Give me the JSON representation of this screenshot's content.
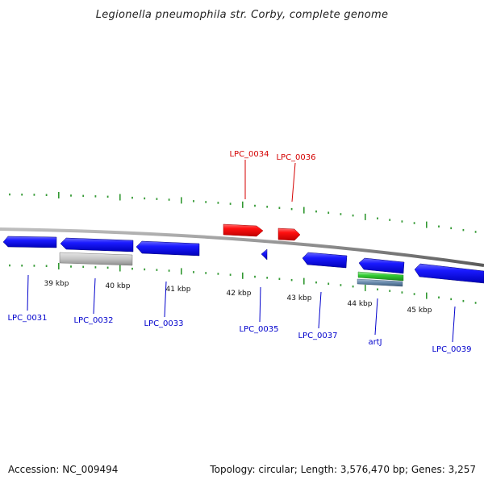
{
  "title": "Legionella pneumophila str. Corby, complete genome",
  "footer": {
    "accession": "Accession: NC_009494",
    "summary": "Topology: circular; Length: 3,576,470 bp; Genes: 3,257"
  },
  "colors": {
    "forward_gene": "#ff0000",
    "reverse_gene": "#0000ff",
    "rrna_gene": "#c8c8c8",
    "green_feature": "#33cc33",
    "steel_feature": "#6688aa",
    "backbone": "#888888",
    "tick": "#339933",
    "label_forward": "#d40000",
    "label_reverse": "#0000cc"
  },
  "kbp_labels": [
    "39 kbp",
    "40 kbp",
    "41 kbp",
    "42 kbp",
    "43 kbp",
    "44 kbp",
    "45 kbp"
  ],
  "labels": {
    "LPC_0031": "LPC_0031",
    "LPC_0032": "LPC_0032",
    "LPC_0033": "LPC_0033",
    "LPC_0034": "LPC_0034",
    "LPC_0035": "LPC_0035",
    "LPC_0036": "LPC_0036",
    "LPC_0037": "LPC_0037",
    "artJ": "artJ",
    "LPC_0039": "LPC_0039"
  }
}
